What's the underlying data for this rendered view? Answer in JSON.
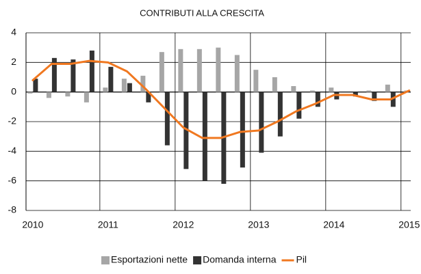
{
  "chart_data": {
    "type": "bar_line",
    "title": "CONTRIBUTI ALLA CRESCITA",
    "x": [
      2010,
      2010.25,
      2010.5,
      2010.75,
      2011,
      2011.25,
      2011.5,
      2011.75,
      2012,
      2012.25,
      2012.5,
      2012.75,
      2013,
      2013.25,
      2013.5,
      2013.75,
      2014,
      2014.25,
      2014.5,
      2014.75,
      2015
    ],
    "series": [
      {
        "name": "Esportazioni nette",
        "kind": "bar",
        "color": "#a6a6a6",
        "values": [
          -0.1,
          -0.4,
          -0.3,
          -0.7,
          0.3,
          0.9,
          1.1,
          2.7,
          2.9,
          2.9,
          3.0,
          2.5,
          1.5,
          1.0,
          0.4,
          0.1,
          0.3,
          0.0,
          0.1,
          0.5,
          0.1
        ]
      },
      {
        "name": "Domanda interna",
        "kind": "bar",
        "color": "#333333",
        "values": [
          0.9,
          2.3,
          2.2,
          2.8,
          1.7,
          0.6,
          -0.7,
          -3.6,
          -5.2,
          -6.0,
          -6.2,
          -5.1,
          -4.1,
          -3.0,
          -1.8,
          -1.0,
          -0.5,
          -0.3,
          -0.6,
          -1.0,
          0.0
        ]
      },
      {
        "name": "Pil",
        "kind": "line",
        "color": "#f07820",
        "values": [
          0.8,
          1.9,
          1.9,
          2.1,
          2.0,
          1.4,
          0.2,
          -1.1,
          -2.4,
          -3.1,
          -3.1,
          -2.7,
          -2.6,
          -2.0,
          -1.3,
          -0.8,
          -0.2,
          -0.2,
          -0.5,
          -0.5,
          0.1
        ]
      }
    ],
    "xlim": [
      2009.91,
      2015.02
    ],
    "xticks": [
      2010,
      2011,
      2012,
      2013,
      2014,
      2015
    ],
    "ylim": [
      -8,
      4
    ],
    "yticks": [
      -8,
      -6,
      -4,
      -2,
      0,
      2,
      4
    ],
    "grid": true,
    "legend": "bottom"
  }
}
